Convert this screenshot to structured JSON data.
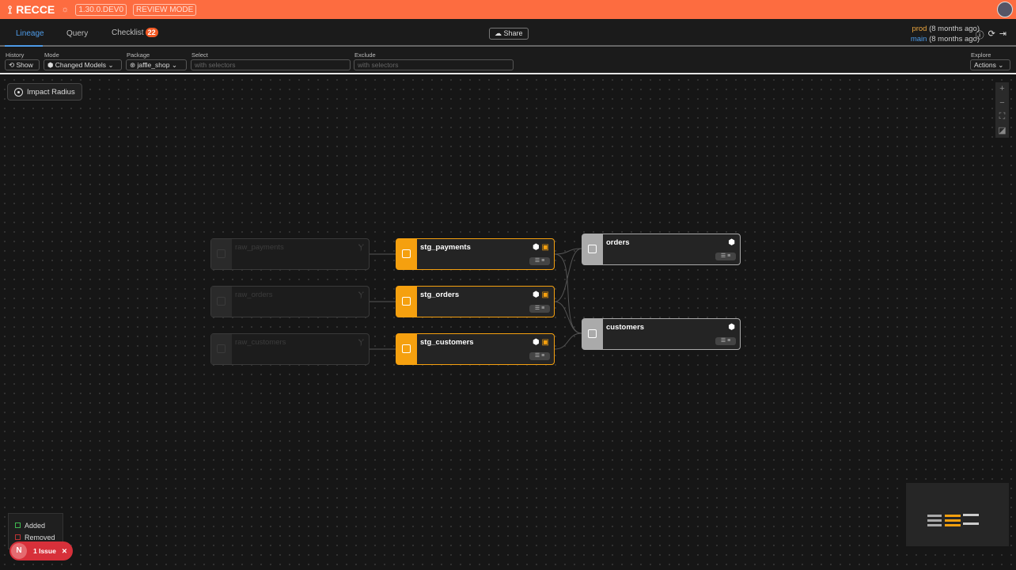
{
  "header": {
    "brand": "RECCE",
    "version": "1.30.0.DEV0",
    "mode_badge": "REVIEW MODE"
  },
  "tabs": [
    {
      "label": "Lineage",
      "active": true
    },
    {
      "label": "Query"
    },
    {
      "label": "Checklist",
      "badge": "22"
    }
  ],
  "share_label": "Share",
  "env": {
    "base": "prod",
    "base_time": "(8 months ago)",
    "current": "main",
    "current_time": "(8 months ago)"
  },
  "toolbar": {
    "history_label": "History",
    "history_button": "Show",
    "mode_label": "Mode",
    "mode_value": "Changed Models",
    "package_label": "Package",
    "package_value": "jaffle_shop",
    "select_label": "Select",
    "select_placeholder": "with selectors",
    "exclude_label": "Exclude",
    "exclude_placeholder": "with selectors",
    "explore_label": "Explore",
    "actions_label": "Actions"
  },
  "impact_radius": "Impact Radius",
  "nodes": {
    "raw_payments": "raw_payments",
    "raw_orders": "raw_orders",
    "raw_customers": "raw_customers",
    "stg_payments": "stg_payments",
    "stg_orders": "stg_orders",
    "stg_customers": "stg_customers",
    "orders": "orders",
    "customers": "customers"
  },
  "legend": {
    "added": "Added",
    "removed": "Removed"
  },
  "issue": {
    "avatar": "N",
    "label": "1 Issue"
  },
  "colors": {
    "header": "#fd6c40",
    "modified": "#f5a00f",
    "accent": "#4e9be8",
    "added": "#3fb950",
    "removed": "#d7303a"
  }
}
